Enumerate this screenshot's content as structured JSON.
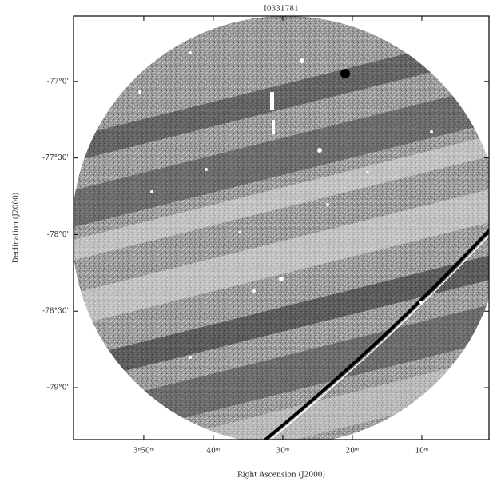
{
  "chart_data": {
    "type": "image",
    "title": "I0331781",
    "xlabel": "Right Ascension (J2000)",
    "ylabel": "Declination (J2000)",
    "xlim": [
      4.0017,
      3.0057
    ],
    "ylim": [
      -79.339,
      -76.573
    ],
    "xticks": [
      {
        "value": 3.8333,
        "label": "3ʰ50ᵐ"
      },
      {
        "value": 3.6667,
        "label": "40ᵐ"
      },
      {
        "value": 3.5,
        "label": "30ᵐ"
      },
      {
        "value": 3.3333,
        "label": "20ᵐ"
      },
      {
        "value": 3.1667,
        "label": "10ᵐ"
      }
    ],
    "yticks": [
      {
        "value": -77,
        "label": "-77°0'"
      },
      {
        "value": -77.5,
        "label": "-77°30'"
      },
      {
        "value": -78,
        "label": "-78°0'"
      },
      {
        "value": -78.5,
        "label": "-78°30'"
      },
      {
        "value": -79,
        "label": "-79°0'"
      }
    ]
  }
}
